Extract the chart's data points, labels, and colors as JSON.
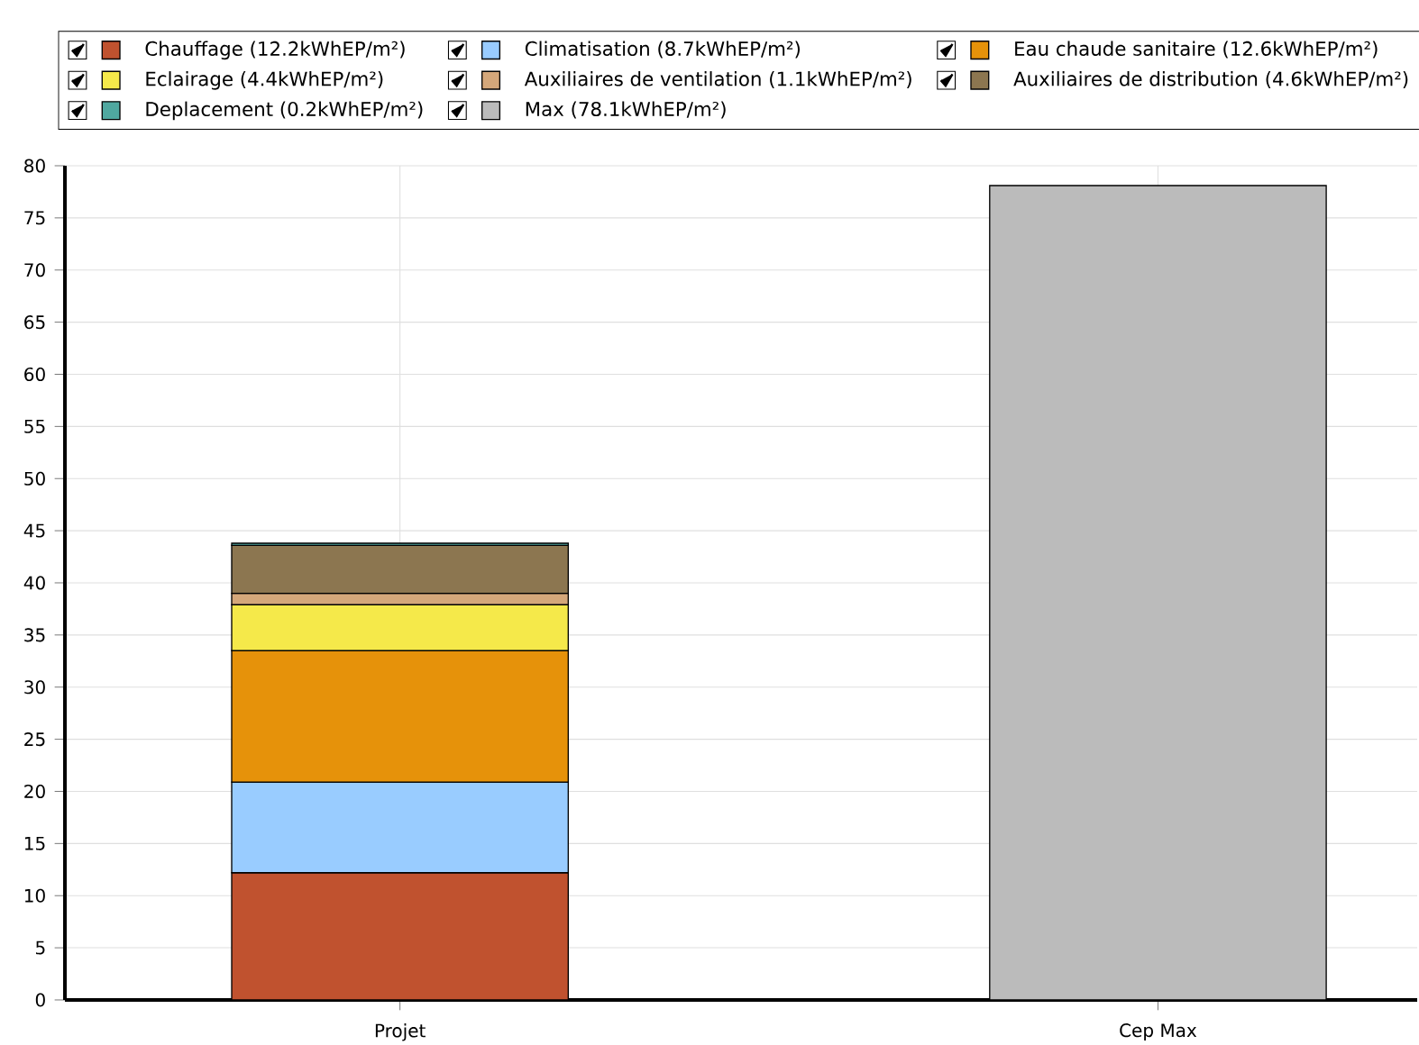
{
  "chart_data": {
    "type": "bar",
    "stacked": true,
    "categories": [
      "Projet",
      "Cep Max"
    ],
    "series": [
      {
        "name": "Chauffage (12.2kWhEP/m²)",
        "color": "#c0522f",
        "values": [
          12.2,
          null
        ]
      },
      {
        "name": "Climatisation (8.7kWhEP/m²)",
        "color": "#99ccff",
        "values": [
          8.7,
          null
        ]
      },
      {
        "name": "Eau chaude sanitaire (12.6kWhEP/m²)",
        "color": "#e6920a",
        "values": [
          12.6,
          null
        ]
      },
      {
        "name": "Eclairage (4.4kWhEP/m²)",
        "color": "#f5e94a",
        "values": [
          4.4,
          null
        ]
      },
      {
        "name": "Auxiliaires de ventilation (1.1kWhEP/m²)",
        "color": "#d4a77a",
        "values": [
          1.1,
          null
        ]
      },
      {
        "name": "Auxiliaires de distribution (4.6kWhEP/m²)",
        "color": "#8c7650",
        "values": [
          4.6,
          null
        ]
      },
      {
        "name": "Deplacement (0.2kWhEP/m²)",
        "color": "#4fa8a0",
        "values": [
          0.2,
          null
        ]
      },
      {
        "name": "Max (78.1kWhEP/m²)",
        "color": "#bbbbbb",
        "values": [
          null,
          78.1
        ]
      }
    ],
    "ylim": [
      0,
      80
    ],
    "yticks": [
      0,
      5,
      10,
      15,
      20,
      25,
      30,
      35,
      40,
      45,
      50,
      55,
      60,
      65,
      70,
      75,
      80
    ],
    "grid": true,
    "legend": "top"
  }
}
